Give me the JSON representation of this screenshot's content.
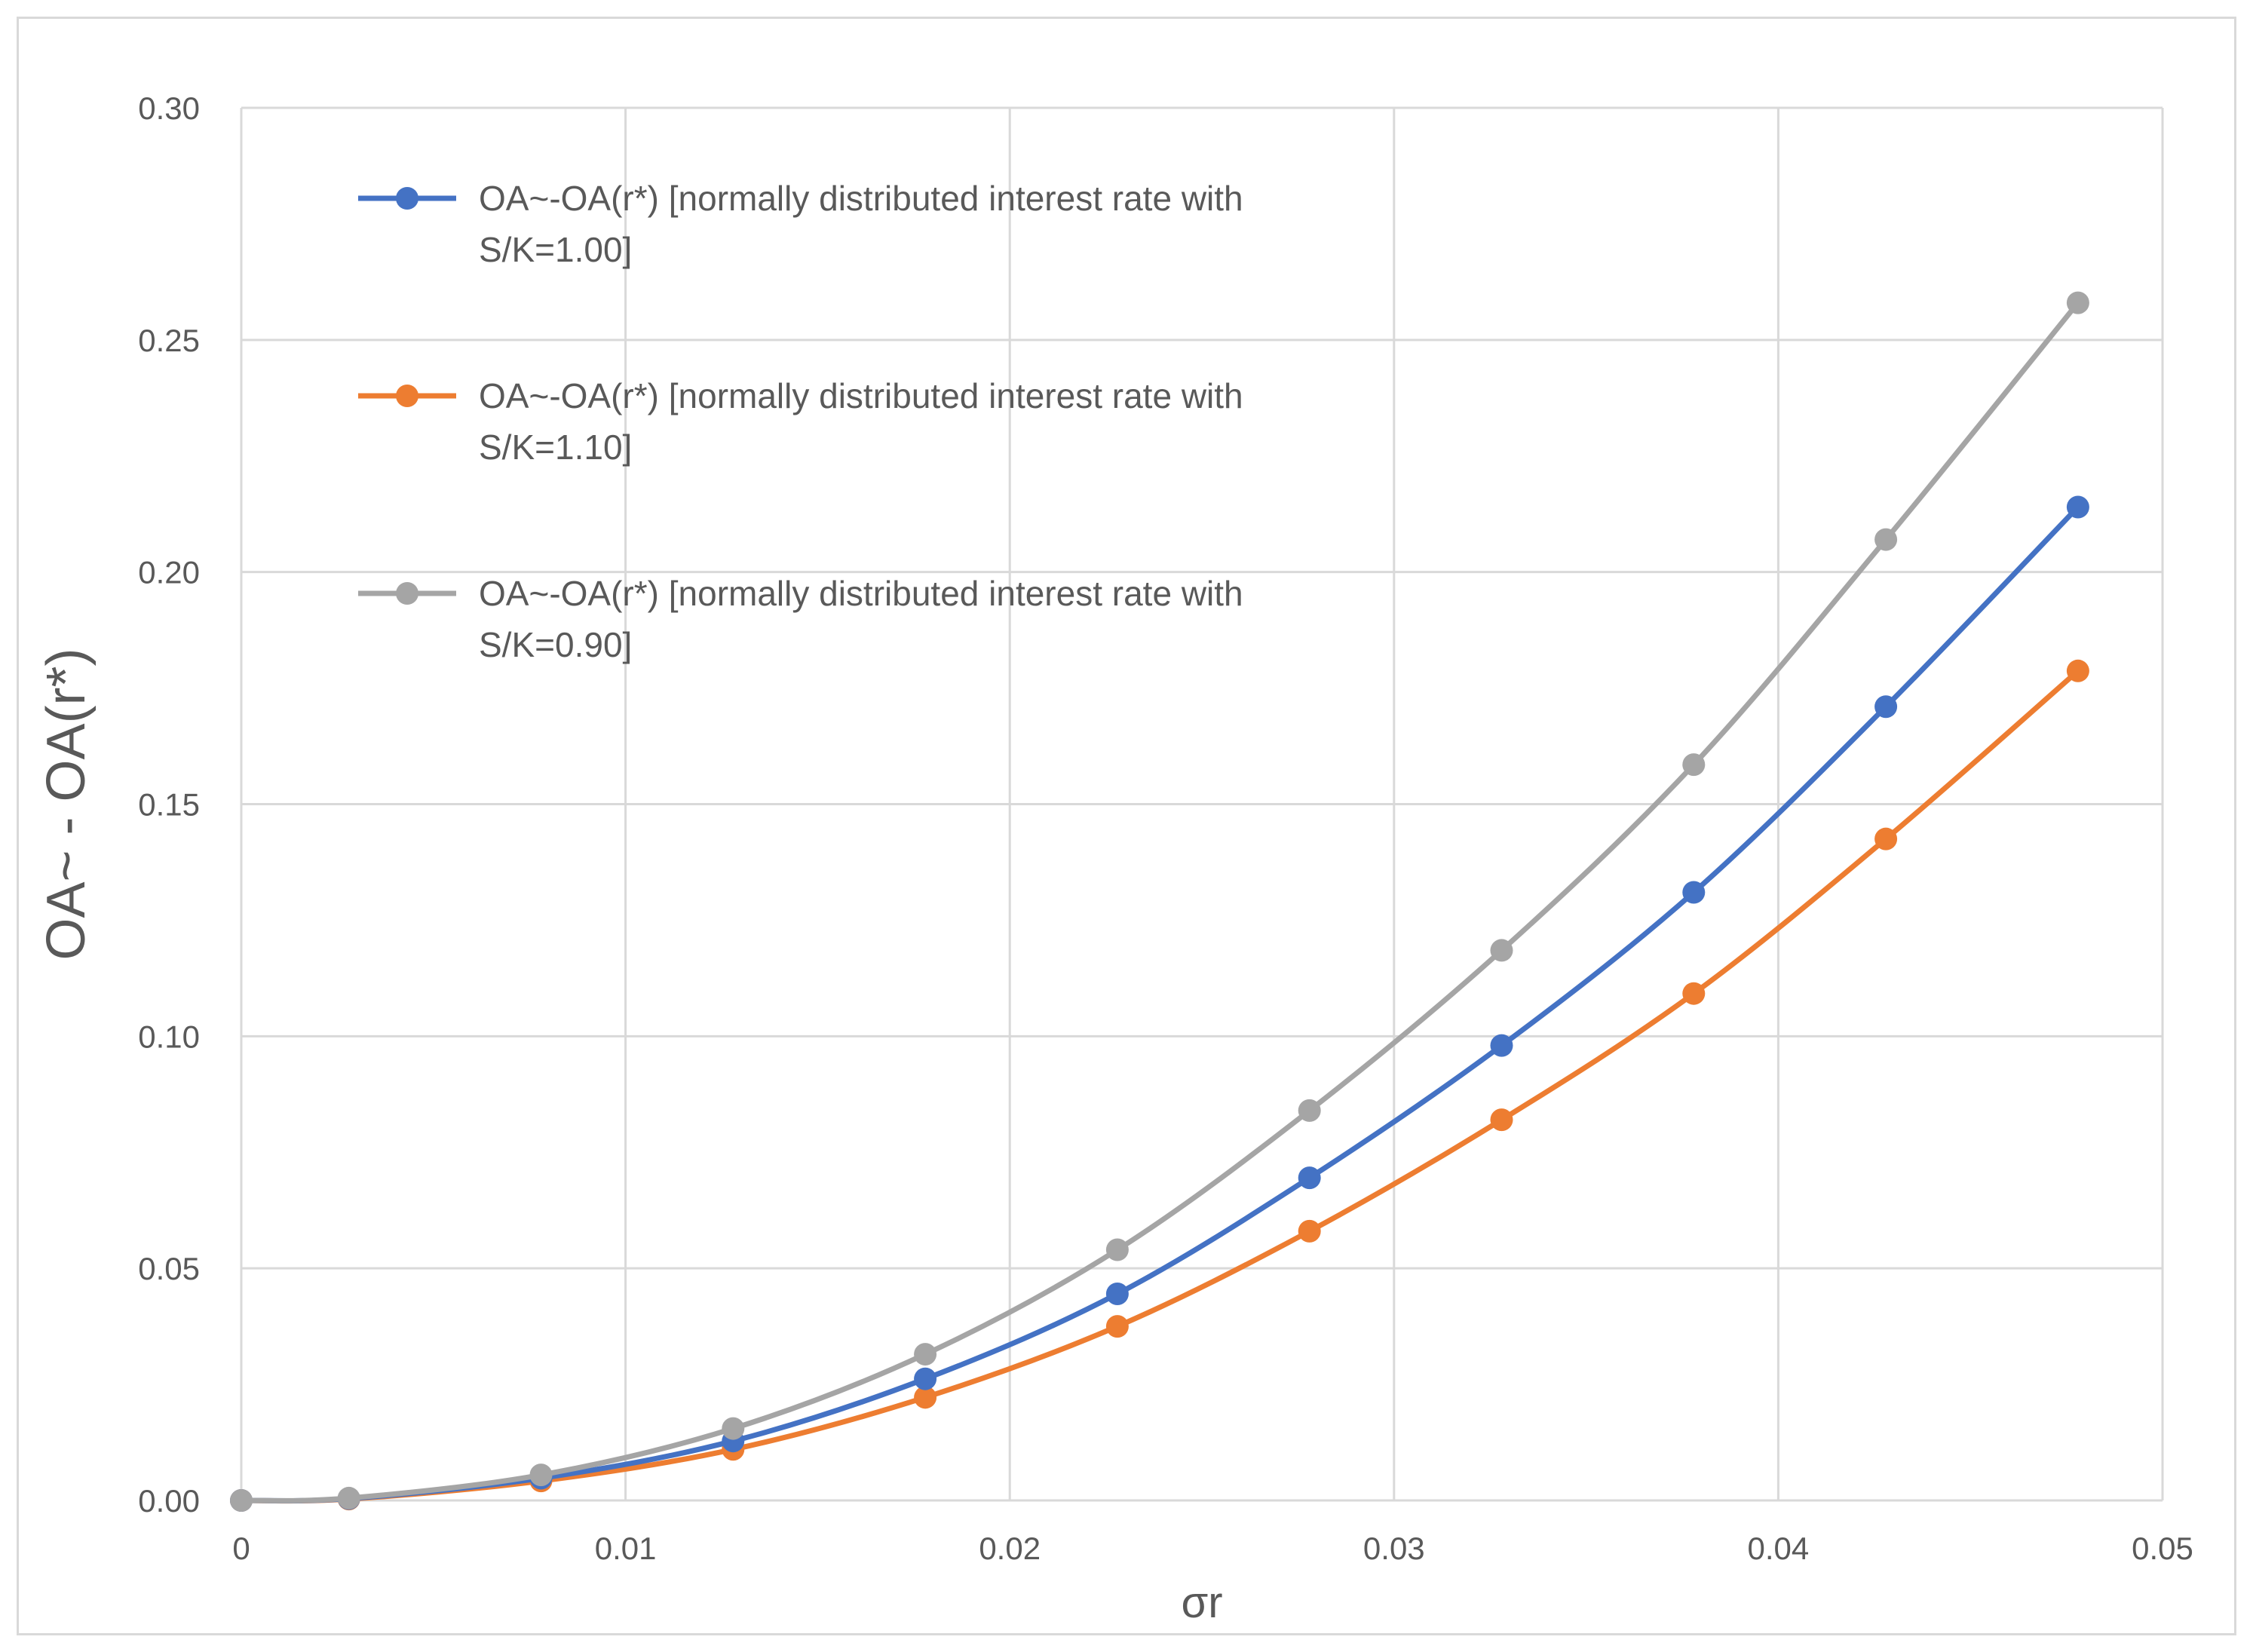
{
  "chart_data": {
    "type": "line",
    "title": "",
    "xlabel": "σr",
    "ylabel": "OA~ - OA(r*)",
    "xlim": [
      0,
      0.05
    ],
    "ylim": [
      0,
      0.3
    ],
    "x_ticks": [
      "0",
      "0.01",
      "0.02",
      "0.03",
      "0.04",
      "0.05"
    ],
    "y_ticks": [
      "0.00",
      "0.05",
      "0.10",
      "0.15",
      "0.20",
      "0.25",
      "0.30"
    ],
    "grid": true,
    "legend_position": "top-left",
    "x": [
      0,
      0.0028,
      0.0078,
      0.0128,
      0.0178,
      0.0228,
      0.0278,
      0.0328,
      0.0378,
      0.0428,
      0.0478
    ],
    "series": [
      {
        "name_lines": [
          "OA~-OA(r*) [normally distributed interest rate with",
          "S/K=1.00]"
        ],
        "color": "#4472C4",
        "values": [
          0,
          0.0004,
          0.0048,
          0.0128,
          0.0262,
          0.0445,
          0.0695,
          0.098,
          0.131,
          0.171,
          0.214
        ]
      },
      {
        "name_lines": [
          "OA~-OA(r*) [normally distributed interest rate with",
          "S/K=1.10]"
        ],
        "color": "#ED7D31",
        "values": [
          0,
          0.0003,
          0.0042,
          0.011,
          0.0222,
          0.0375,
          0.058,
          0.082,
          0.1092,
          0.1425,
          0.1787
        ]
      },
      {
        "name_lines": [
          "OA~-OA(r*) [normally distributed interest rate with",
          "S/K=0.90]"
        ],
        "color": "#A5A5A5",
        "values": [
          0,
          0.0005,
          0.0055,
          0.0155,
          0.0315,
          0.054,
          0.084,
          0.1185,
          0.1585,
          0.207,
          0.258
        ]
      }
    ]
  }
}
